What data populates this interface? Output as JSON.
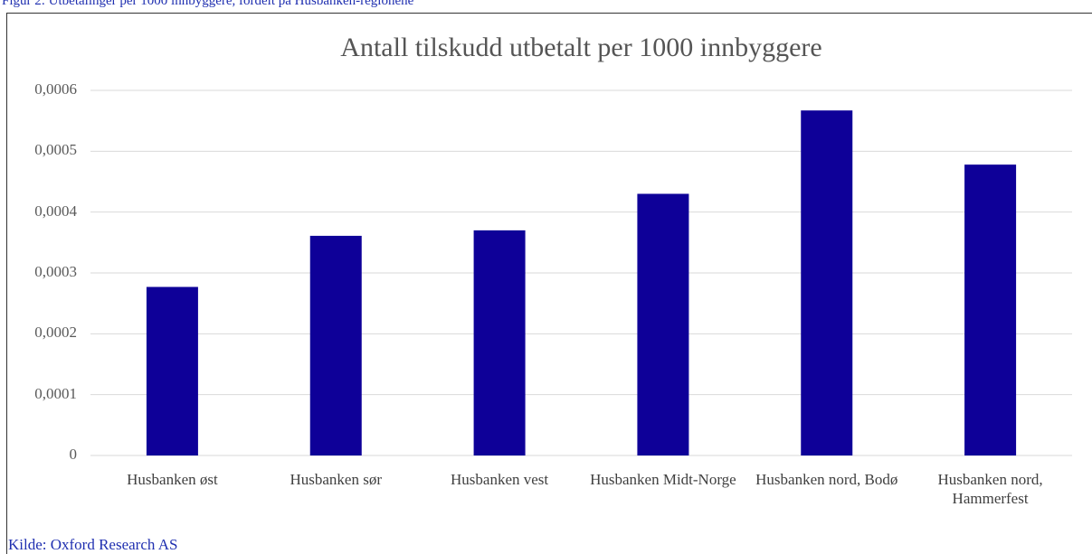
{
  "caption": "Figur 2: Utbetalinger per 1000 innbyggere, fordelt på Husbanken-regionene",
  "source": "Kilde: Oxford Research AS",
  "chart_data": {
    "type": "bar",
    "title": "Antall tilskudd utbetalt per 1000 innbyggere",
    "categories": [
      "Husbanken øst",
      "Husbanken sør",
      "Husbanken vest",
      "Husbanken Midt-Norge",
      "Husbanken nord, Bodø",
      "Husbanken nord, Hammerfest"
    ],
    "values": [
      0.000277,
      0.000361,
      0.00037,
      0.00043,
      0.000567,
      0.000478
    ],
    "color": "#0e0098",
    "ylim": [
      0,
      0.0006
    ],
    "yticks": [
      0,
      {
        "value": 0.0001,
        "label": "0,0001"
      },
      {
        "value": 0.0002,
        "label": "0,0002"
      },
      {
        "value": 0.0003,
        "label": "0,0003"
      },
      {
        "value": 0.0004,
        "label": "0,0004"
      },
      {
        "value": 0.0005,
        "label": "0,0005"
      },
      {
        "value": 0.0006,
        "label": "0,0006"
      }
    ],
    "grid": true
  }
}
